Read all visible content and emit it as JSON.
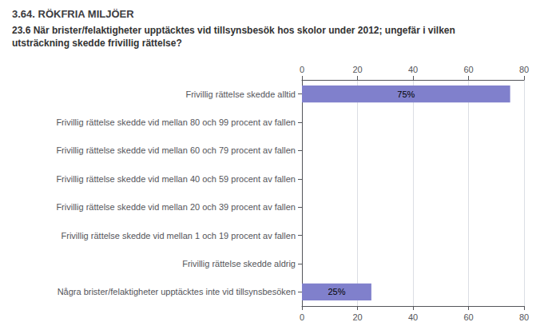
{
  "chart_data": {
    "type": "bar",
    "orientation": "horizontal",
    "title": "3.64. RÖKFRIA MILJÖER",
    "subtitle": "23.6 När brister/felaktigheter upptäcktes vid tillsynsbesök hos skolor under 2012; ungefär i vilken\nutsträckning skedde frivillig rättelse?",
    "categories": [
      "Frivillig rättelse skedde alltid",
      "Frivillig rättelse skedde vid mellan 80 och 99 procent av fallen",
      "Frivillig rättelse skedde vid mellan 60 och 79 procent av fallen",
      "Frivillig rättelse skedde vid mellan 40 och 59 procent av fallen",
      "Frivillig rättelse skedde vid mellan 20 och 39 procent av fallen",
      "Frivillig rättelse skedde vid mellan 1 och 19 procent av fallen",
      "Frivillig rättelse skedde aldrig",
      "Några brister/felaktigheter upptäcktes inte vid tillsynsbesöken"
    ],
    "values": [
      75,
      0,
      0,
      0,
      0,
      0,
      0,
      25
    ],
    "value_labels": [
      "75%",
      null,
      null,
      null,
      null,
      null,
      null,
      "25%"
    ],
    "data_labels": true,
    "color": "#8080cc",
    "xlim": [
      0,
      80
    ],
    "xticks": [
      0,
      20,
      40,
      60,
      80
    ],
    "grid": true
  }
}
